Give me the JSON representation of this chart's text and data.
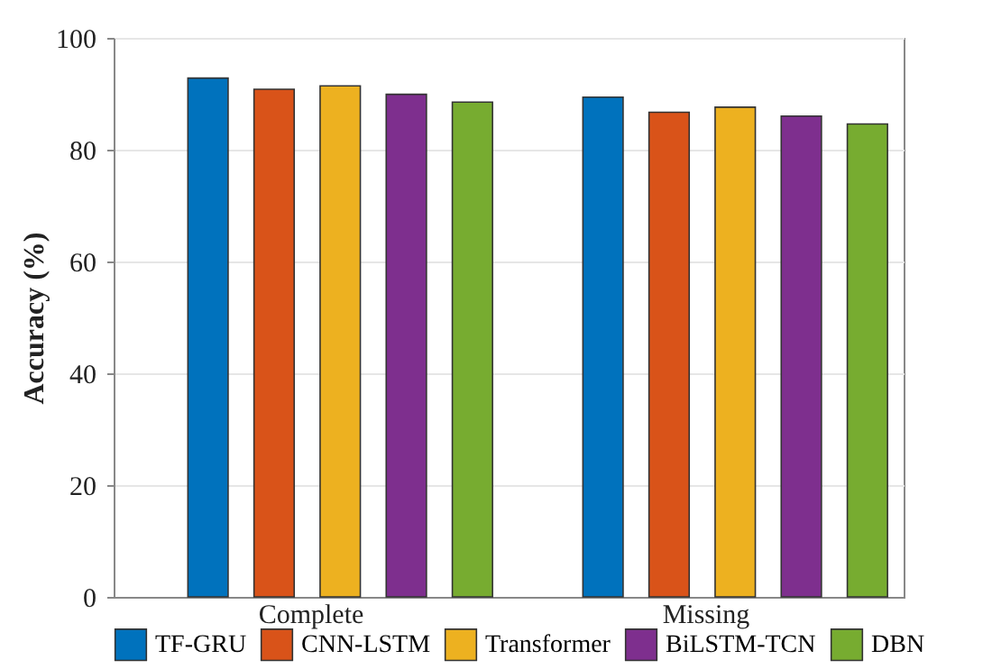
{
  "chart_data": {
    "type": "bar",
    "ylabel": "Accuracy (%)",
    "categories": [
      "Complete",
      "Missing"
    ],
    "series": [
      {
        "name": "TF-GRU",
        "color": "#0072bd",
        "values": [
          92.8,
          89.4
        ]
      },
      {
        "name": "CNN-LSTM",
        "color": "#d95319",
        "values": [
          90.8,
          86.7
        ]
      },
      {
        "name": "Transformer",
        "color": "#edb120",
        "values": [
          91.4,
          87.6
        ]
      },
      {
        "name": "BiLSTM-TCN",
        "color": "#7e2f8e",
        "values": [
          89.9,
          86.0
        ]
      },
      {
        "name": "DBN",
        "color": "#77ac30",
        "values": [
          88.5,
          84.6
        ]
      }
    ],
    "ylim": [
      0,
      100
    ],
    "yticks": [
      0,
      20,
      40,
      60,
      80,
      100
    ],
    "grid": "y",
    "legend": "bottom"
  }
}
